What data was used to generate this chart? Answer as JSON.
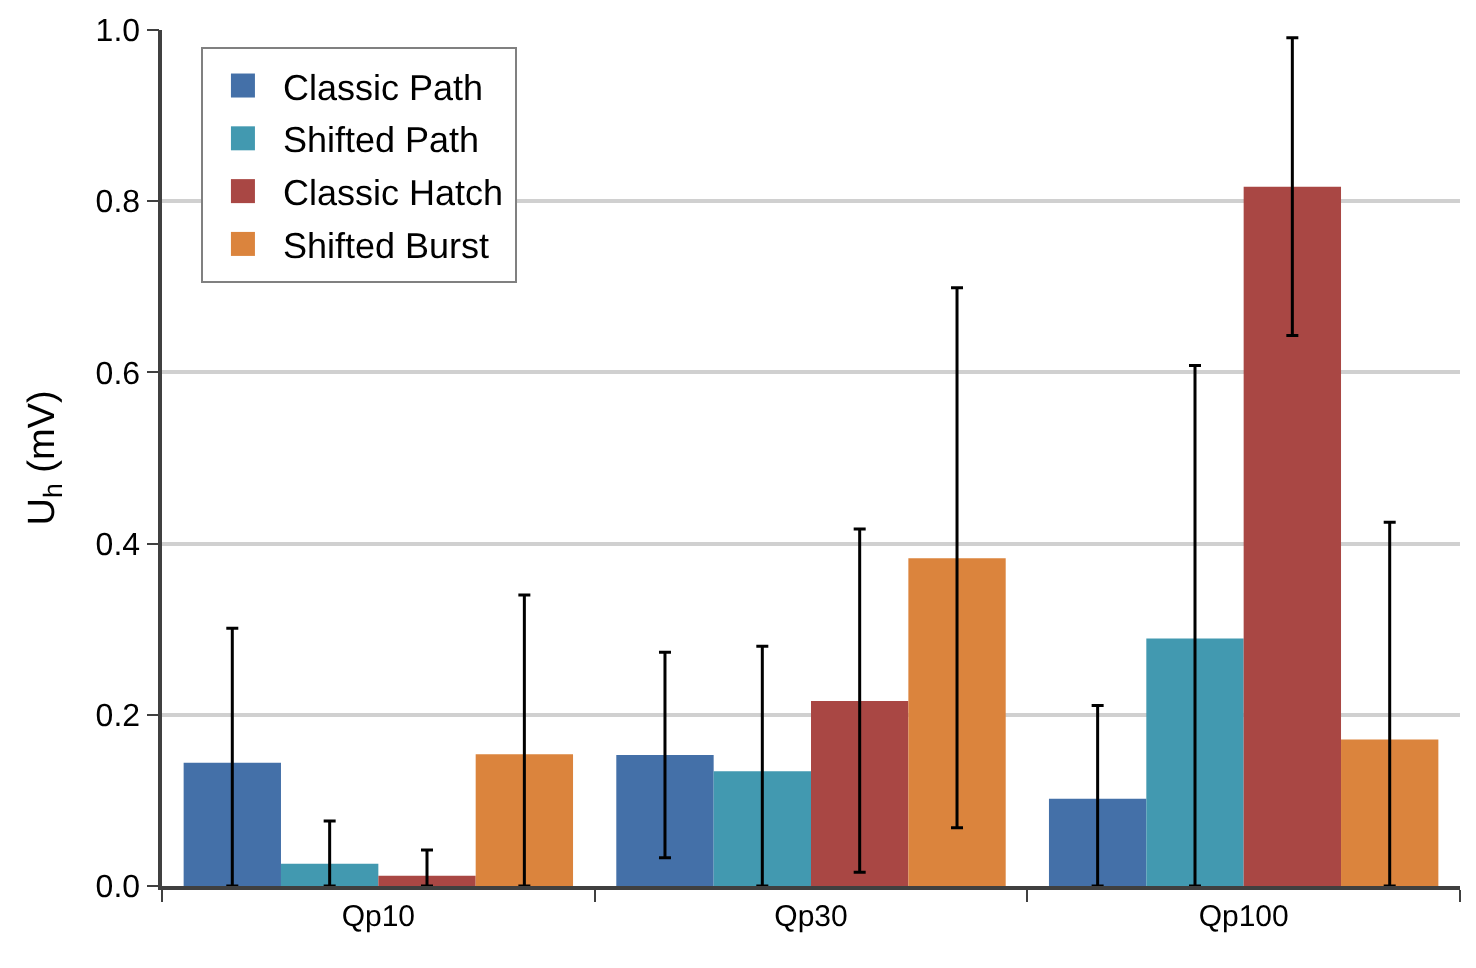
{
  "chart_data": {
    "type": "bar",
    "ylabel": "U$_{h}$ (mV)",
    "categories": [
      "Qp10",
      "Qp30",
      "Qp100"
    ],
    "series": [
      {
        "name": "Classic Path",
        "color": "#4470a8",
        "values": [
          0.144,
          0.153,
          0.102
        ],
        "errors": [
          [
            0,
            0.301
          ],
          [
            0.033,
            0.273
          ],
          [
            0,
            0.211
          ]
        ]
      },
      {
        "name": "Shifted Path",
        "color": "#4299b0",
        "values": [
          0.026,
          0.134,
          0.289
        ],
        "errors": [
          [
            0,
            0.076
          ],
          [
            0,
            0.28
          ],
          [
            0,
            0.608
          ]
        ]
      },
      {
        "name": "Classic Hatch",
        "color": "#a94744",
        "values": [
          0.012,
          0.216,
          0.817
        ],
        "errors": [
          [
            0,
            0.042
          ],
          [
            0.016,
            0.417
          ],
          [
            0.643,
            0.991
          ]
        ]
      },
      {
        "name": "Shifted Burst",
        "color": "#db843d",
        "values": [
          0.154,
          0.383,
          0.171
        ],
        "errors": [
          [
            0,
            0.34
          ],
          [
            0.068,
            0.699
          ],
          [
            0,
            0.425
          ]
        ]
      }
    ],
    "ylim": [
      0,
      1.0
    ],
    "yticks": [
      {
        "value": 0,
        "label": "0.0"
      },
      {
        "value": 0.2,
        "label": "0.2"
      },
      {
        "value": 0.4,
        "label": "0.4"
      },
      {
        "value": 0.6,
        "label": "0.6"
      },
      {
        "value": 0.8,
        "label": "0.8"
      },
      {
        "value": 1.0,
        "label": "1.0"
      }
    ],
    "grid": "y",
    "legend": "top left"
  }
}
